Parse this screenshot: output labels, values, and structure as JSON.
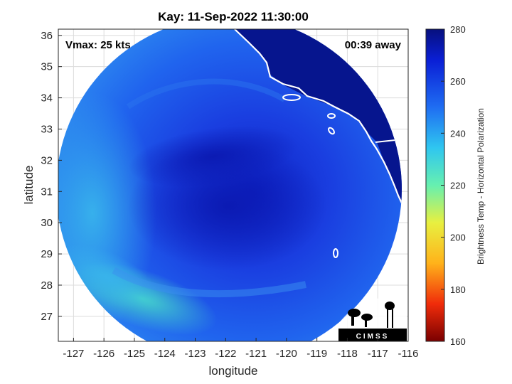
{
  "title": "Kay: 11-Sep-2022 11:30:00",
  "vmax_text": "Vmax: 25 kts",
  "away_text": "00:39 away",
  "xlabel": "longitude",
  "ylabel": "latitude",
  "xticks": [
    "-127",
    "-126",
    "-125",
    "-124",
    "-123",
    "-122",
    "-121",
    "-120",
    "-119",
    "-118",
    "-117",
    "-116"
  ],
  "yticks": [
    "27",
    "28",
    "29",
    "30",
    "31",
    "32",
    "33",
    "34",
    "35",
    "36"
  ],
  "colorbar": {
    "label": "Brightness Temp - Horizontal Polarization",
    "ticks": [
      "280",
      "260",
      "240",
      "220",
      "200",
      "180",
      "160"
    ]
  },
  "logo_text": "CIMSS",
  "colors": {
    "ocean_light": "#3aa0f0",
    "ocean_mid": "#1f5ef0",
    "ocean_dark": "#1020c8",
    "land": "#081a90",
    "teal": "#3ed6d0"
  }
}
